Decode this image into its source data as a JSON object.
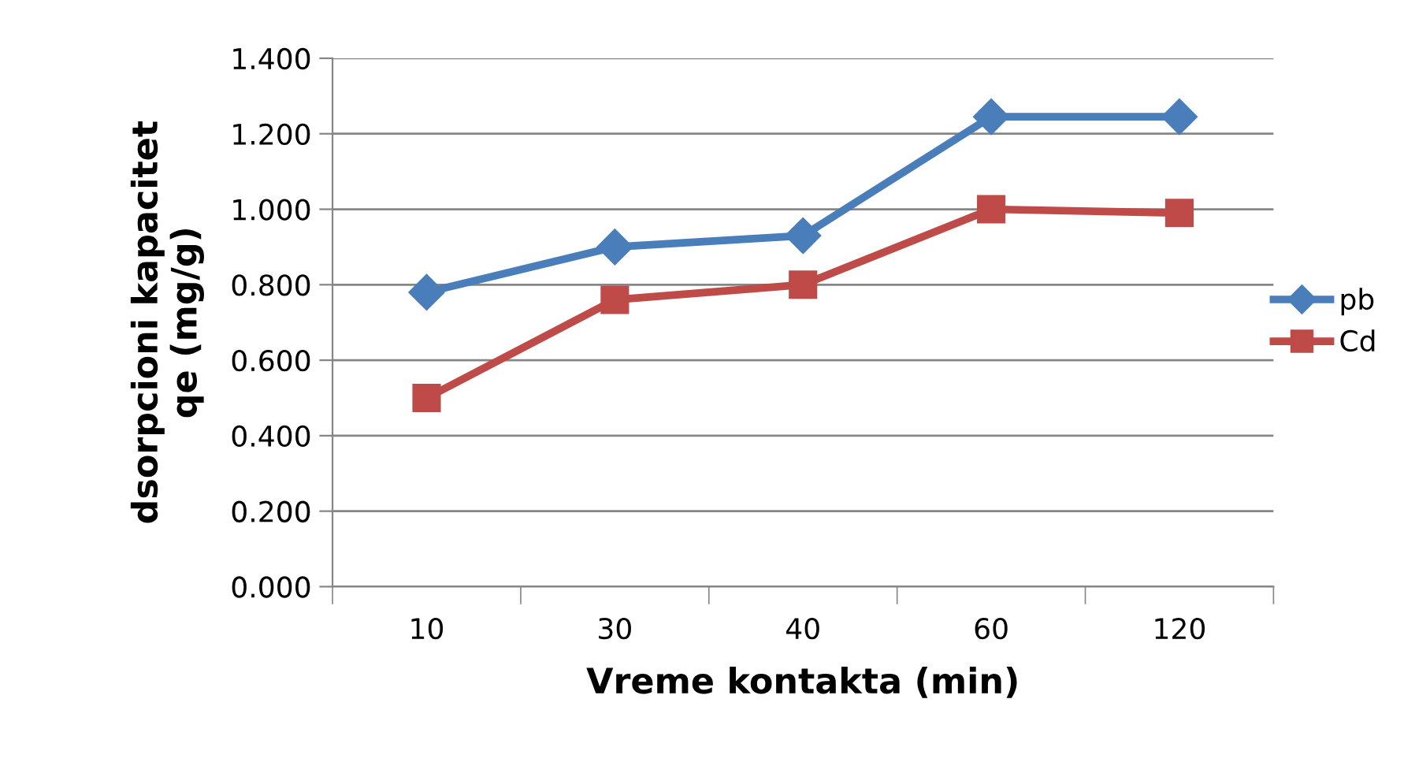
{
  "chart_data": {
    "type": "line",
    "xlabel": "Vreme kontakta (min)",
    "ylabel": "dsorpcioni kapacitet\nqe (mg/g)",
    "categories": [
      "10",
      "30",
      "40",
      "60",
      "120"
    ],
    "series": [
      {
        "name": "pb",
        "color": "#4a7ebb",
        "marker": "diamond",
        "values": [
          0.78,
          0.9,
          0.93,
          1.245,
          1.245
        ]
      },
      {
        "name": "Cd",
        "color": "#be4b48",
        "marker": "square",
        "values": [
          0.5,
          0.76,
          0.8,
          1.0,
          0.99
        ]
      }
    ],
    "ylim": [
      0,
      1.4
    ],
    "yticks": [
      {
        "value": 0,
        "label": "0.000"
      },
      {
        "value": 0.2,
        "label": "0.200"
      },
      {
        "value": 0.4,
        "label": "0.400"
      },
      {
        "value": 0.6,
        "label": "0.600"
      },
      {
        "value": 0.8,
        "label": "0.800"
      },
      {
        "value": 1.0,
        "label": "1.000"
      },
      {
        "value": 1.2,
        "label": "1.200"
      },
      {
        "value": 1.4,
        "label": "1.400"
      }
    ],
    "grid": "y",
    "legend": "right",
    "line_style": "solid"
  }
}
